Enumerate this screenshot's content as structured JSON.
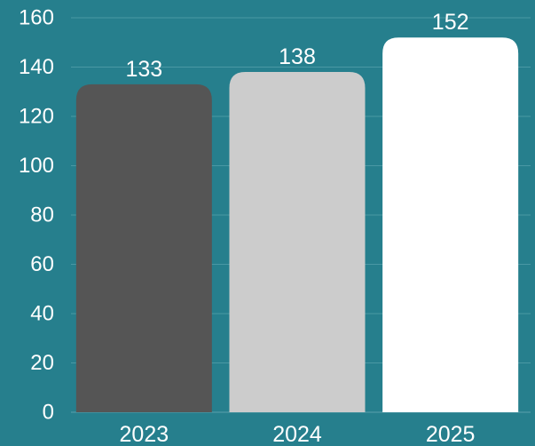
{
  "chart_data": {
    "type": "bar",
    "categories": [
      "2023",
      "2024",
      "2025"
    ],
    "values": [
      133,
      138,
      152
    ],
    "data_labels": [
      "133",
      "138",
      "152"
    ],
    "y_ticks": [
      "0",
      "20",
      "40",
      "60",
      "80",
      "100",
      "120",
      "140",
      "160"
    ],
    "ylim": [
      0,
      160
    ],
    "grid": true,
    "legend": "none",
    "title": "",
    "xlabel": "",
    "ylabel": "",
    "bar_colors": [
      "#555555",
      "#cccccc",
      "#ffffff"
    ],
    "background_color": "#267f8d"
  }
}
